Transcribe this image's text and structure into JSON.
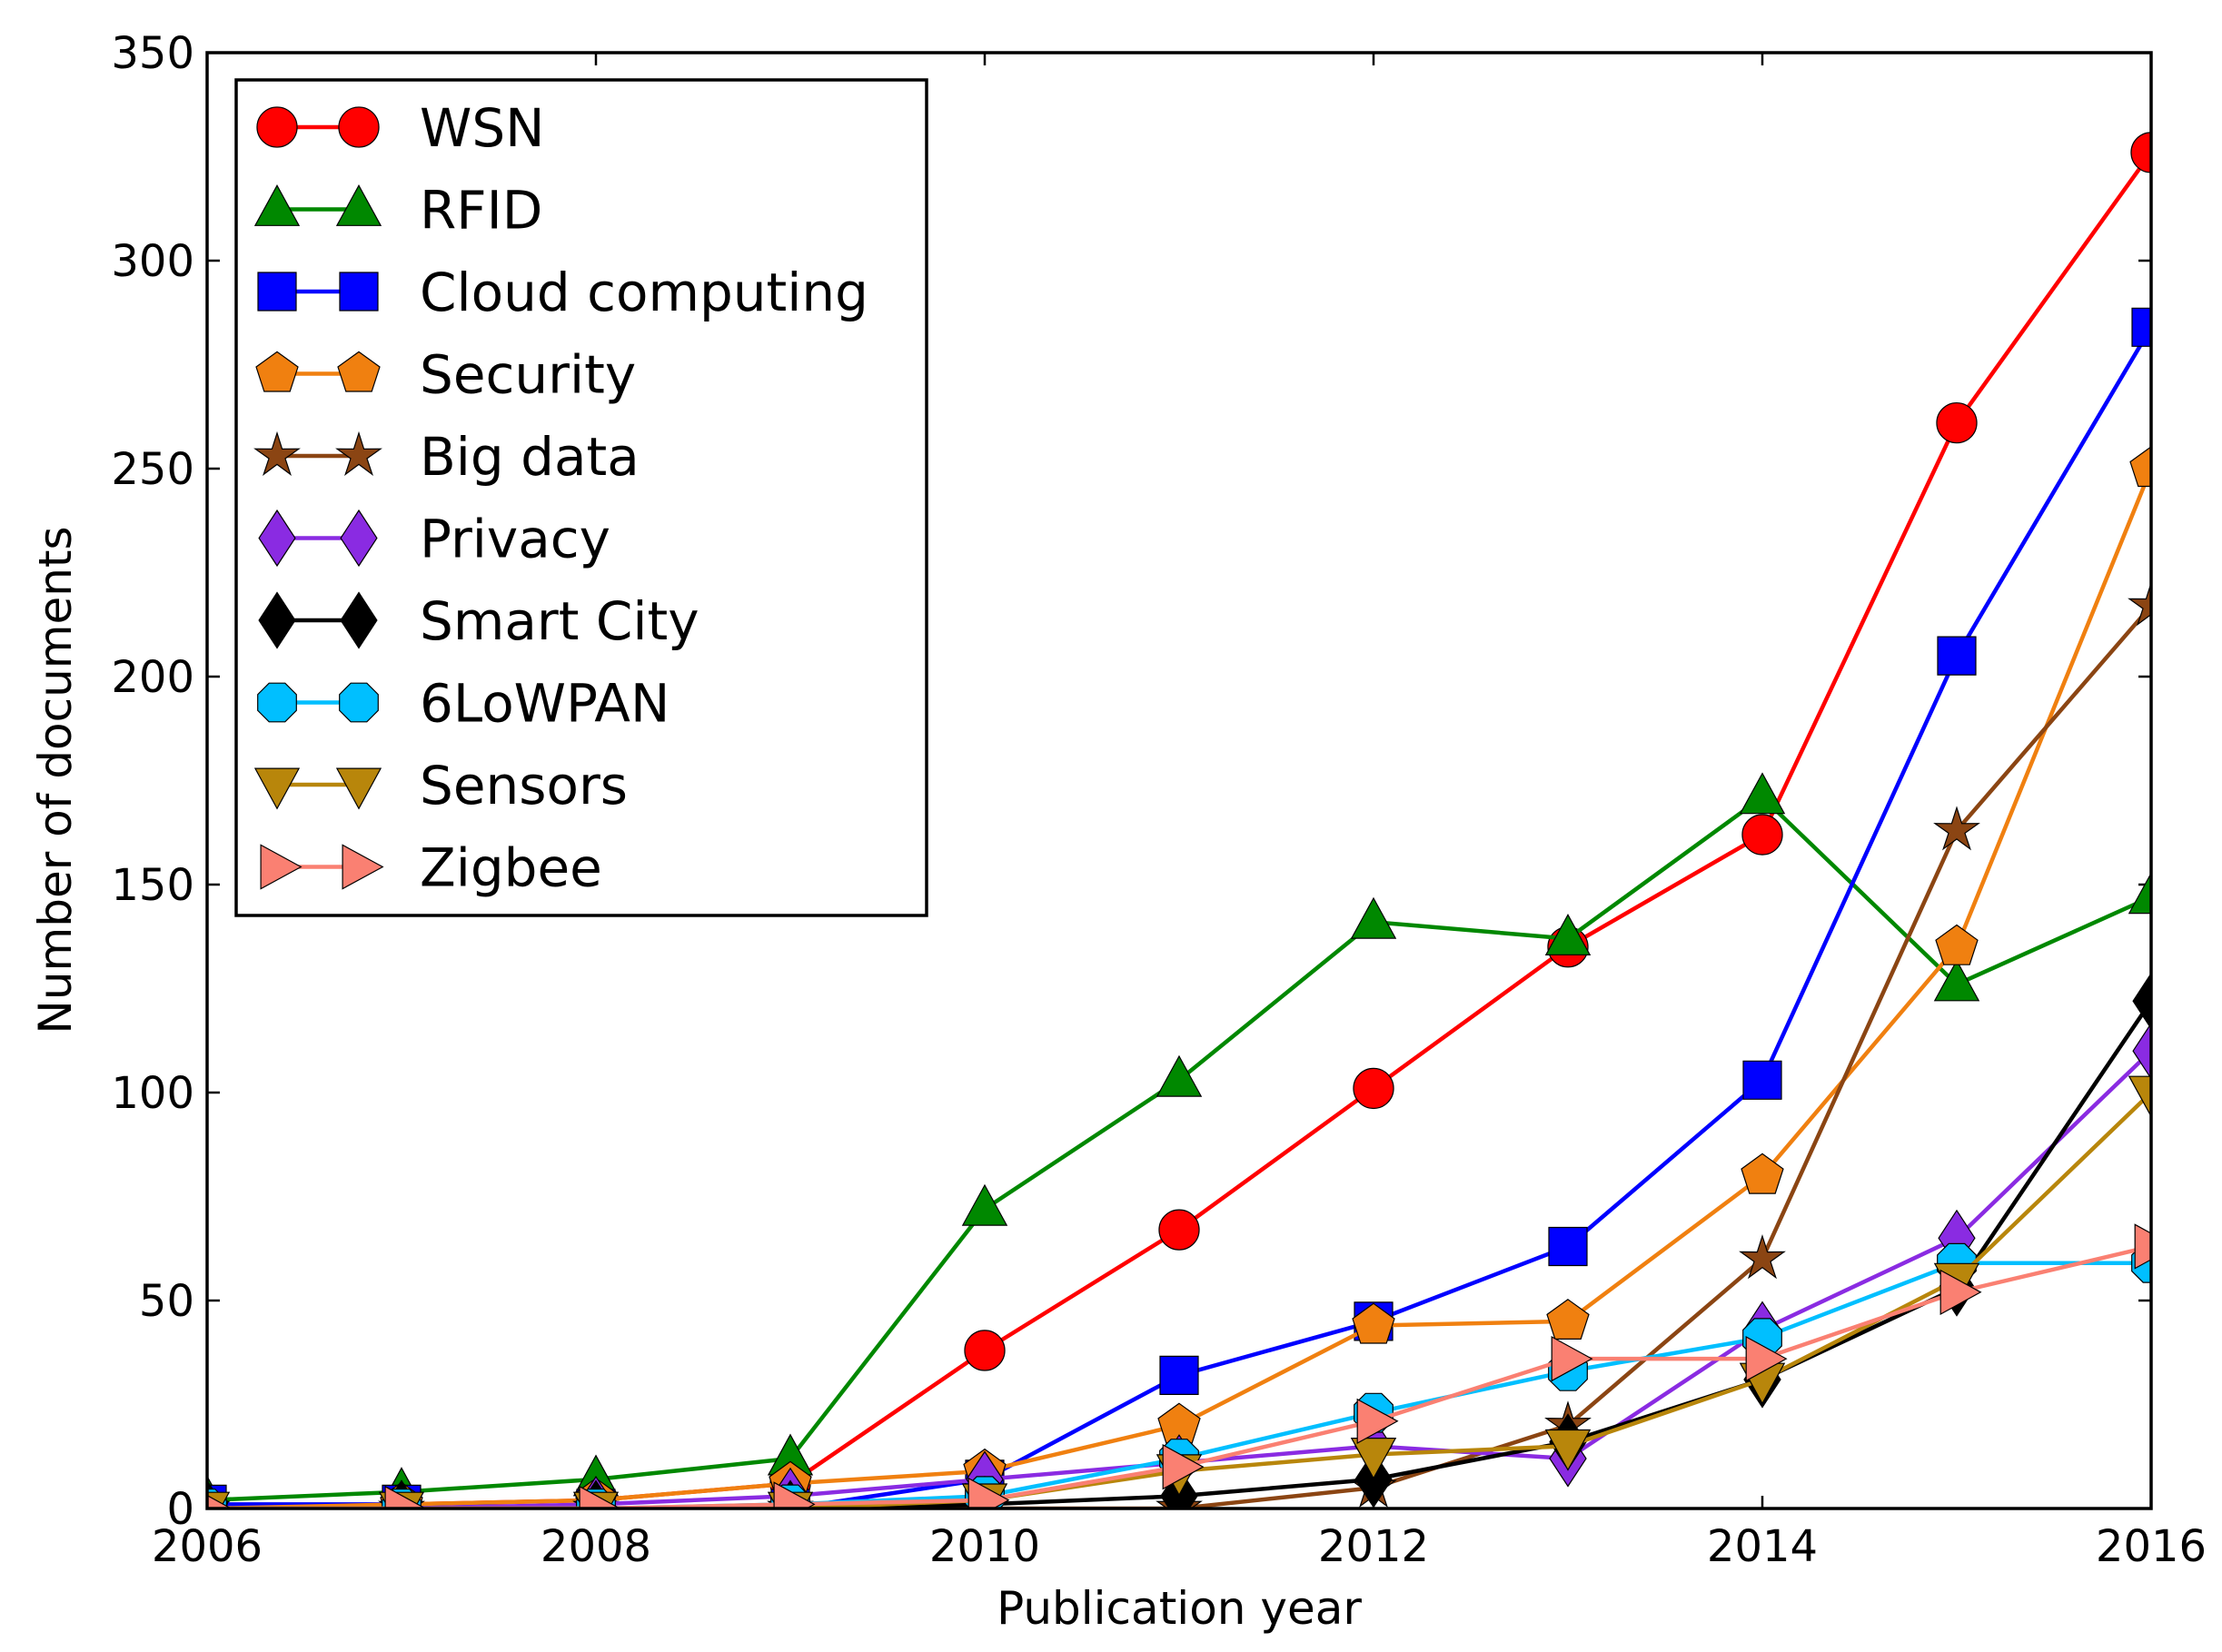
{
  "chart_data": {
    "type": "line",
    "title": "",
    "xlabel": "Publication year",
    "ylabel": "Number of documents",
    "xlim": [
      2006,
      2016
    ],
    "ylim": [
      0,
      350
    ],
    "xticks": [
      "2006",
      "2008",
      "2010",
      "2012",
      "2014",
      "2016"
    ],
    "yticks": [
      "0",
      "50",
      "100",
      "150",
      "200",
      "250",
      "300",
      "350"
    ],
    "grid": false,
    "legend_position": "upper-left",
    "x": [
      2006,
      2007,
      2008,
      2009,
      2010,
      2011,
      2012,
      2013,
      2014,
      2015,
      2016
    ],
    "series": [
      {
        "name": "WSN",
        "color": "#ff0000",
        "marker": "circle",
        "values": [
          0,
          1,
          2,
          6,
          38,
          67,
          101,
          135,
          162,
          261,
          326
        ]
      },
      {
        "name": "RFID",
        "color": "#008800",
        "marker": "triangle-up",
        "values": [
          2,
          4,
          7,
          12,
          72,
          103,
          141,
          137,
          171,
          126,
          147
        ]
      },
      {
        "name": "Cloud computing",
        "color": "#0000ff",
        "marker": "square",
        "values": [
          1,
          1,
          0,
          0,
          7,
          32,
          45,
          63,
          103,
          205,
          284
        ]
      },
      {
        "name": "Security",
        "color": "#f08010",
        "marker": "pentagon",
        "values": [
          0,
          1,
          2,
          6,
          9,
          20,
          44,
          45,
          80,
          135,
          250
        ]
      },
      {
        "name": "Big data",
        "color": "#8b4513",
        "marker": "star",
        "values": [
          0,
          0,
          0,
          0,
          0,
          0,
          5,
          20,
          60,
          163,
          217
        ]
      },
      {
        "name": "Privacy",
        "color": "#8a2be2",
        "marker": "diamond",
        "values": [
          0,
          0,
          1,
          3,
          7,
          11,
          15,
          12,
          43,
          65,
          110
        ]
      },
      {
        "name": "Smart City",
        "color": "#000000",
        "marker": "diamond",
        "values": [
          0,
          0,
          0,
          0,
          1,
          3,
          7,
          16,
          31,
          53,
          122
        ]
      },
      {
        "name": "6LoWPAN",
        "color": "#00bfff",
        "marker": "octagon",
        "values": [
          0,
          0,
          0,
          1,
          3,
          12,
          23,
          33,
          41,
          59,
          59
        ]
      },
      {
        "name": "Sensors",
        "color": "#b8860b",
        "marker": "triangle-down",
        "values": [
          0,
          0,
          0,
          0,
          2,
          9,
          13,
          15,
          31,
          55,
          100
        ]
      },
      {
        "name": "Zigbee",
        "color": "#fa8072",
        "marker": "triangle-right",
        "values": [
          0,
          0,
          0,
          1,
          2,
          10,
          21,
          36,
          36,
          52,
          63
        ]
      }
    ]
  }
}
